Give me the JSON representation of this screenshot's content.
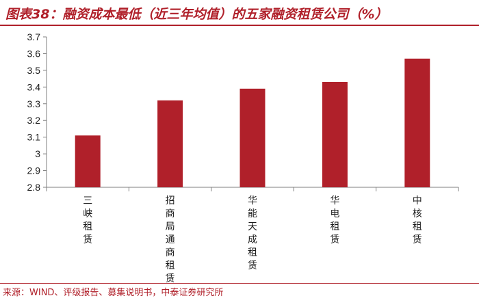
{
  "header": {
    "title": "图表38：融资成本最低（近三年均值）的五家融资租赁公司（%）"
  },
  "footer": {
    "source": "来源：WIND、评级报告、募集说明书，中泰证券研究所"
  },
  "colors": {
    "bar": "#b0202a",
    "accent": "#b0202a",
    "axis": "#7f7f7f"
  },
  "chart_data": {
    "type": "bar",
    "title": "融资成本最低（近三年均值）的五家融资租赁公司（%）",
    "categories": [
      "三峡租赁",
      "招商局通商租赁",
      "华能天成租赁",
      "华电租赁",
      "中核租赁"
    ],
    "values": [
      3.11,
      3.32,
      3.39,
      3.43,
      3.57
    ],
    "ylim": [
      2.8,
      3.7
    ],
    "yticks": [
      "2.8",
      "2.9",
      "3",
      "3.1",
      "3.2",
      "3.3",
      "3.4",
      "3.5",
      "3.6",
      "3.7"
    ],
    "grid": false,
    "legend": "none"
  }
}
